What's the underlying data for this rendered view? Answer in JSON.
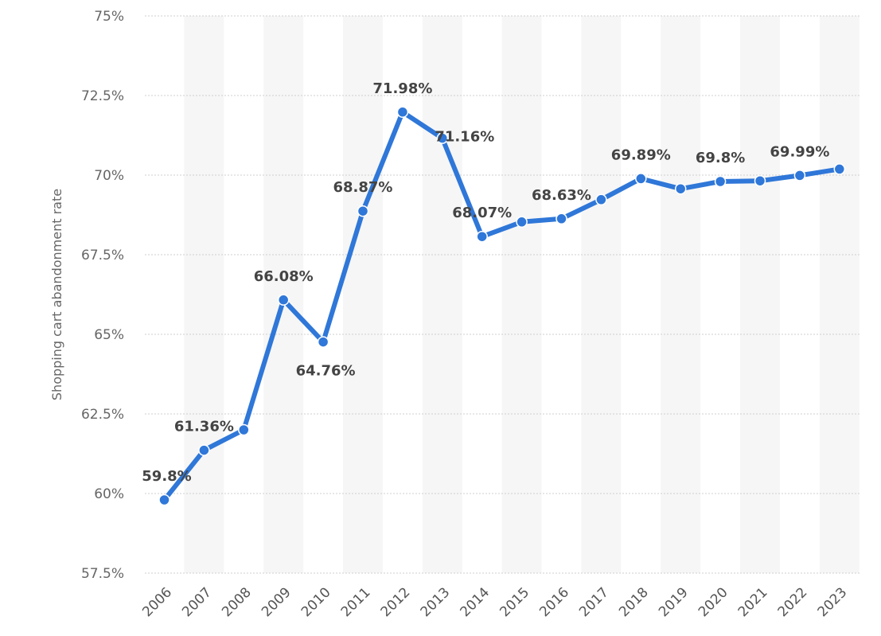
{
  "chart_data": {
    "type": "line",
    "xlabel": "",
    "ylabel": "Shopping cart abandonment rate",
    "ylim": [
      57.5,
      75
    ],
    "yticks": [
      "57.5%",
      "60%",
      "62.5%",
      "65%",
      "67.5%",
      "70%",
      "72.5%",
      "75%"
    ],
    "ytick_values": [
      57.5,
      60,
      62.5,
      65,
      67.5,
      70,
      72.5,
      75
    ],
    "categories": [
      "2006",
      "2007",
      "2008",
      "2009",
      "2010",
      "2011",
      "2012",
      "2013",
      "2014",
      "2015",
      "2016",
      "2017",
      "2018",
      "2019",
      "2020",
      "2021",
      "2022",
      "2023"
    ],
    "series": [
      {
        "values": [
          59.8,
          61.36,
          62.0,
          66.08,
          64.76,
          68.87,
          71.98,
          71.16,
          68.07,
          68.53,
          68.63,
          69.23,
          69.89,
          69.57,
          69.8,
          69.82,
          69.99,
          70.19
        ],
        "labels": [
          "59.8%",
          "61.36%",
          "",
          "66.08%",
          "64.76%",
          "68.87%",
          "71.98%",
          "71.16%",
          "68.07%",
          "",
          "68.63%",
          "",
          "69.89%",
          "",
          "69.8%",
          "",
          "69.99%",
          ""
        ]
      }
    ],
    "colors": {
      "line": "#2f77d8",
      "band": "#f6f6f6",
      "grid": "#cfcfcf"
    },
    "grid": true,
    "legend": "none"
  }
}
